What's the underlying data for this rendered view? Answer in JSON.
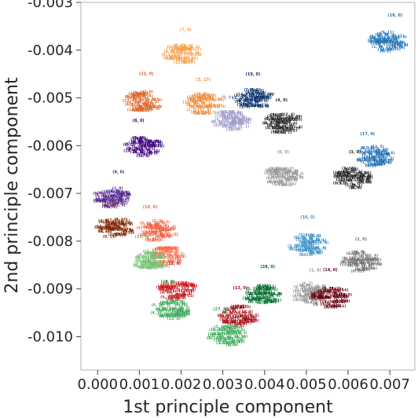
{
  "chart_data": {
    "type": "scatter",
    "title": "",
    "xlabel": "1st principle component",
    "ylabel": "2nd principle component",
    "xlim": [
      -0.0004,
      0.0076
    ],
    "ylim": [
      -0.0107,
      -0.003
    ],
    "xticks": [
      "0.000",
      "0.001",
      "0.002",
      "0.003",
      "0.004",
      "0.005",
      "0.006",
      "0.007"
    ],
    "yticks": [
      "-0.003",
      "-0.004",
      "-0.005",
      "-0.006",
      "-0.007",
      "-0.008",
      "-0.009",
      "-0.010"
    ],
    "xtick_values": [
      0.0,
      0.001,
      0.002,
      0.003,
      0.004,
      0.005,
      0.006,
      0.007
    ],
    "ytick_values": [
      -0.003,
      -0.004,
      -0.005,
      -0.006,
      -0.007,
      -0.008,
      -0.009,
      -0.01
    ],
    "grid": false,
    "note_points_drawn_as_text_labels": true,
    "series": [
      {
        "color": "#f5a14a",
        "label_example": "(7, 0)",
        "center": [
          0.00205,
          -0.0041
        ]
      },
      {
        "color": "#d9652a",
        "label_example": "(22, 0)",
        "center": [
          0.0011,
          -0.0051
        ]
      },
      {
        "color": "#f08a3c",
        "label_example": "(3, 17)",
        "center": [
          0.00255,
          -0.00515
        ]
      },
      {
        "color": "#9e9ac8",
        "label_example": "(9, 0)",
        "center": [
          0.0032,
          -0.0055
        ]
      },
      {
        "color": "#08306b",
        "label_example": "(19, 0)",
        "center": [
          0.00375,
          -0.00505
        ]
      },
      {
        "color": "#252525",
        "label_example": "(4, 0)",
        "center": [
          0.00445,
          -0.00555
        ]
      },
      {
        "color": "#3f007d",
        "label_example": "(8, 0)",
        "center": [
          0.0011,
          -0.00605
        ]
      },
      {
        "color": "#2171b5",
        "label_example": "(18, 0)",
        "center": [
          0.00695,
          -0.00385
        ]
      },
      {
        "color": "#2171b5",
        "label_example": "(17, 0)",
        "center": [
          0.00665,
          -0.00625
        ]
      },
      {
        "color": "#252525",
        "label_example": "(3, 0)",
        "center": [
          0.0061,
          -0.0067
        ]
      },
      {
        "color": "#969696",
        "label_example": "(0, 0)",
        "center": [
          0.00445,
          -0.00665
        ]
      },
      {
        "color": "#54278f",
        "label_example": "(9, 0)",
        "center": [
          0.00035,
          -0.0071
        ]
      },
      {
        "color": "#7f2704",
        "label_example": "(23, 0)",
        "center": [
          0.0004,
          -0.00775
        ]
      },
      {
        "color": "#ef6548",
        "label_example": "(10, 0)",
        "center": [
          0.0014,
          -0.0078
        ]
      },
      {
        "color": "#fb6a4a",
        "label_example": "(11, 0)",
        "center": [
          0.00165,
          -0.00835
        ]
      },
      {
        "color": "#74c476",
        "label_example": "(21, 0)",
        "center": [
          0.00125,
          -0.0084
        ]
      },
      {
        "color": "#4292c6",
        "label_example": "(16, 0)",
        "center": [
          0.00505,
          -0.0081
        ]
      },
      {
        "color": "#737373",
        "label_example": "(2, 0)",
        "center": [
          0.0063,
          -0.00845
        ]
      },
      {
        "color": "#cb181d",
        "label_example": "(12, 0)",
        "center": [
          0.0019,
          -0.00905
        ]
      },
      {
        "color": "#41ab5d",
        "label_example": "(20, 0)",
        "center": [
          0.00175,
          -0.00945
        ]
      },
      {
        "color": "#006d2c",
        "label_example": "(28, 0)",
        "center": [
          0.00395,
          -0.00915
        ]
      },
      {
        "color": "#a50f15",
        "label_example": "(13, 0)",
        "center": [
          0.0034,
          -0.0096
        ]
      },
      {
        "color": "#41ab5d",
        "label_example": "(27, 0)",
        "center": [
          0.0031,
          -0.01
        ]
      },
      {
        "color": "#969696",
        "label_example": "(1, 0)",
        "center": [
          0.0051,
          -0.0091
        ]
      },
      {
        "color": "#67000d",
        "label_example": "(14, 0)",
        "center": [
          0.0056,
          -0.0092
        ]
      }
    ]
  }
}
